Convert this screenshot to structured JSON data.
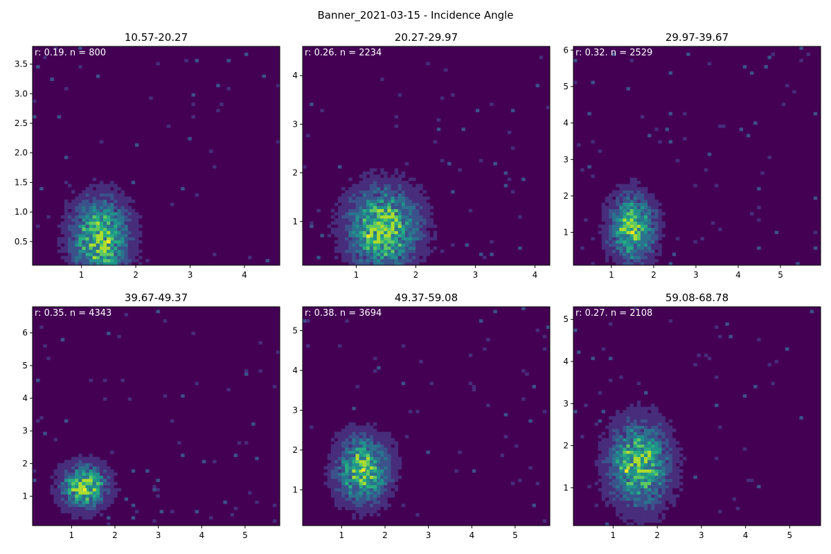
{
  "figure": {
    "title": "Banner_2021-03-15 - Incidence Angle"
  },
  "colors": {
    "background": "#440154",
    "low": "#46327e",
    "mid": "#21918c",
    "high": "#5ec962",
    "peak": "#fde725"
  },
  "chart_data": [
    {
      "type": "heatmap",
      "title": "10.57-20.27",
      "annotation": "r: 0.19. n = 800",
      "xlim": [
        0.1,
        4.65
      ],
      "ylim": [
        0.1,
        3.8
      ],
      "xticks": [
        "1",
        "2",
        "3",
        "4"
      ],
      "xtick_values": [
        1,
        2,
        3,
        4
      ],
      "yticks": [
        "0.5",
        "1.0",
        "1.5",
        "2.0",
        "2.5",
        "3.0",
        "3.5"
      ],
      "ytick_values": [
        0.5,
        1.0,
        1.5,
        2.0,
        2.5,
        3.0,
        3.5
      ],
      "density_center": [
        1.35,
        0.55
      ],
      "density_spread": [
        0.35,
        0.45
      ],
      "max_count_location": [
        1.5,
        0.5
      ]
    },
    {
      "type": "heatmap",
      "title": "20.27-29.97",
      "annotation": "r: 0.26. n = 2234",
      "xlim": [
        0.1,
        4.25
      ],
      "ylim": [
        0.1,
        4.6
      ],
      "xticks": [
        "1",
        "2",
        "3",
        "4"
      ],
      "xtick_values": [
        1,
        2,
        3,
        4
      ],
      "yticks": [
        "1",
        "2",
        "3",
        "4"
      ],
      "ytick_values": [
        1,
        2,
        3,
        4
      ],
      "density_center": [
        1.45,
        0.85
      ],
      "density_spread": [
        0.4,
        0.55
      ],
      "max_count_location": [
        1.2,
        0.7
      ]
    },
    {
      "type": "heatmap",
      "title": "29.97-39.67",
      "annotation": "r: 0.32. n = 2529",
      "xlim": [
        0.1,
        5.95
      ],
      "ylim": [
        0.1,
        6.1
      ],
      "xticks": [
        "1",
        "2",
        "3",
        "4",
        "5"
      ],
      "xtick_values": [
        1,
        2,
        3,
        4,
        5
      ],
      "yticks": [
        "1",
        "2",
        "3",
        "4",
        "5",
        "6"
      ],
      "ytick_values": [
        1,
        2,
        3,
        4,
        5,
        6
      ],
      "density_center": [
        1.5,
        1.1
      ],
      "density_spread": [
        0.35,
        0.6
      ],
      "max_count_location": [
        1.5,
        1.0
      ]
    },
    {
      "type": "heatmap",
      "title": "39.67-49.37",
      "annotation": "r: 0.35. n = 4343",
      "xlim": [
        0.1,
        5.8
      ],
      "ylim": [
        0.1,
        6.8
      ],
      "xticks": [
        "1",
        "2",
        "3",
        "4",
        "5"
      ],
      "xtick_values": [
        1,
        2,
        3,
        4,
        5
      ],
      "yticks": [
        "1",
        "2",
        "3",
        "4",
        "5",
        "6"
      ],
      "ytick_values": [
        1,
        2,
        3,
        4,
        5,
        6
      ],
      "density_center": [
        1.3,
        1.3
      ],
      "density_spread": [
        0.35,
        0.45
      ],
      "max_count_location": [
        1.3,
        1.2
      ]
    },
    {
      "type": "heatmap",
      "title": "49.37-59.08",
      "annotation": "r: 0.38. n = 3694",
      "xlim": [
        0.1,
        5.8
      ],
      "ylim": [
        0.1,
        5.6
      ],
      "xticks": [
        "1",
        "2",
        "3",
        "4",
        "5"
      ],
      "xtick_values": [
        1,
        2,
        3,
        4,
        5
      ],
      "yticks": [
        "1",
        "2",
        "3",
        "4",
        "5"
      ],
      "ytick_values": [
        1,
        2,
        3,
        4,
        5
      ],
      "density_center": [
        1.5,
        1.5
      ],
      "density_spread": [
        0.4,
        0.55
      ],
      "max_count_location": [
        1.5,
        1.5
      ]
    },
    {
      "type": "heatmap",
      "title": "59.08-68.78",
      "annotation": "r: 0.27. n = 2108",
      "xlim": [
        0.1,
        5.7
      ],
      "ylim": [
        0.1,
        5.3
      ],
      "xticks": [
        "1",
        "2",
        "3",
        "4",
        "5"
      ],
      "xtick_values": [
        1,
        2,
        3,
        4,
        5
      ],
      "yticks": [
        "1",
        "2",
        "3",
        "4",
        "5"
      ],
      "ytick_values": [
        1,
        2,
        3,
        4,
        5
      ],
      "density_center": [
        1.6,
        1.55
      ],
      "density_spread": [
        0.45,
        0.65
      ],
      "max_count_location": [
        1.3,
        1.4
      ]
    }
  ]
}
